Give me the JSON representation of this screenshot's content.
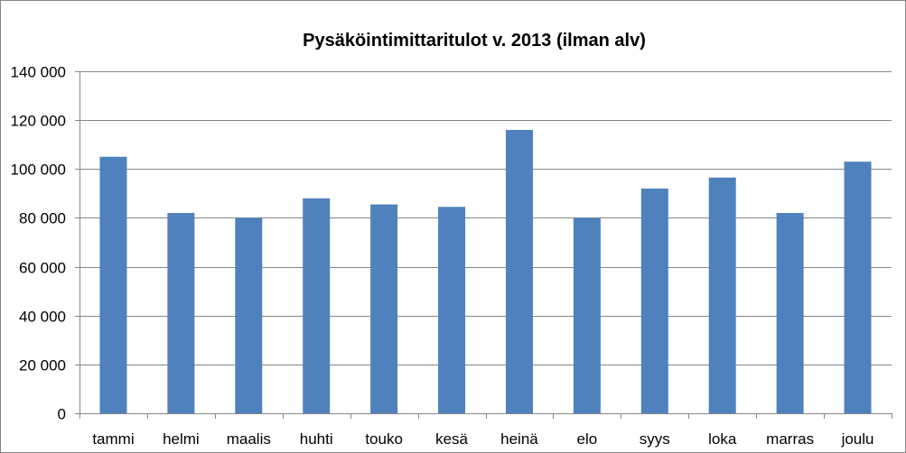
{
  "chart_data": {
    "type": "bar",
    "title": "Pysäköintimittaritulot v. 2013 (ilman alv)",
    "xlabel": "",
    "ylabel": "",
    "categories": [
      "tammi",
      "helmi",
      "maalis",
      "huhti",
      "touko",
      "kesä",
      "heinä",
      "elo",
      "syys",
      "loka",
      "marras",
      "joulu"
    ],
    "values": [
      105000,
      82000,
      80000,
      88000,
      85500,
      84500,
      116000,
      80000,
      92000,
      96500,
      82000,
      103000
    ],
    "ylim": [
      0,
      140000
    ],
    "yticks": [
      0,
      20000,
      40000,
      60000,
      80000,
      100000,
      120000,
      140000
    ],
    "ytick_labels": [
      "0",
      "20 000",
      "40 000",
      "60 000",
      "80 000",
      "100 000",
      "120 000",
      "140 000"
    ],
    "grid": true,
    "legend": "none",
    "colors": {
      "bar": "#4f81bd",
      "grid": "#868686",
      "axis": "#868686",
      "frame": "#868686"
    }
  }
}
